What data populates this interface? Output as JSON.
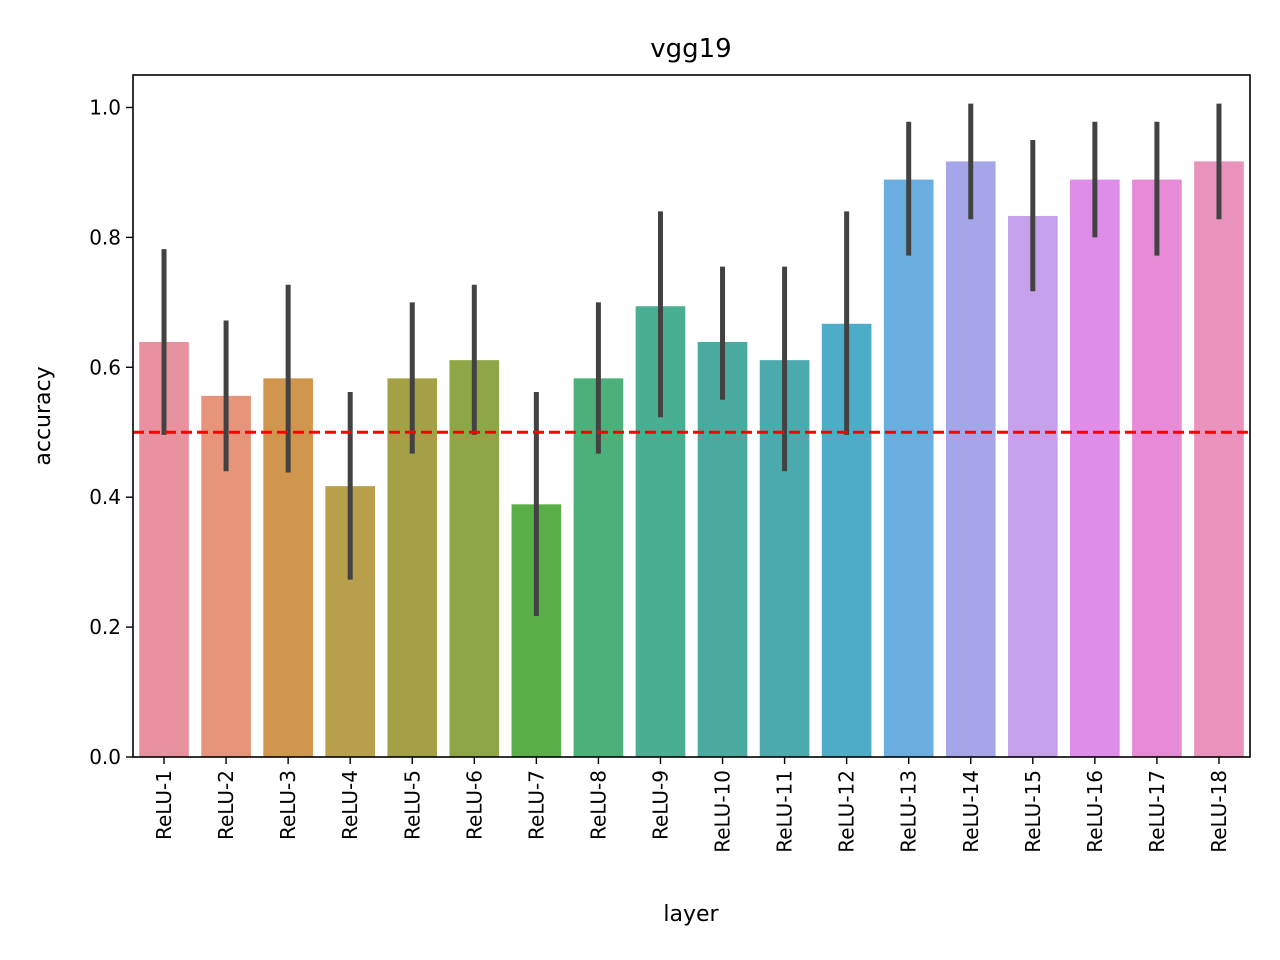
{
  "chart_data": {
    "type": "bar",
    "title": "vgg19",
    "xlabel": "layer",
    "ylabel": "accuracy",
    "ylim": [
      0,
      1.05
    ],
    "yticks": [
      0.0,
      0.2,
      0.4,
      0.6,
      0.8,
      1.0
    ],
    "ytick_labels": [
      "0.0",
      "0.2",
      "0.4",
      "0.6",
      "0.8",
      "1.0"
    ],
    "categories": [
      "ReLU-1",
      "ReLU-2",
      "ReLU-3",
      "ReLU-4",
      "ReLU-5",
      "ReLU-6",
      "ReLU-7",
      "ReLU-8",
      "ReLU-9",
      "ReLU-10",
      "ReLU-11",
      "ReLU-12",
      "ReLU-13",
      "ReLU-14",
      "ReLU-15",
      "ReLU-16",
      "ReLU-17",
      "ReLU-18"
    ],
    "values": [
      0.639,
      0.556,
      0.583,
      0.417,
      0.583,
      0.611,
      0.389,
      0.583,
      0.694,
      0.639,
      0.611,
      0.667,
      0.889,
      0.917,
      0.833,
      0.889,
      0.889,
      0.917
    ],
    "error_low": [
      0.496,
      0.44,
      0.438,
      0.273,
      0.467,
      0.496,
      0.217,
      0.467,
      0.523,
      0.55,
      0.44,
      0.496,
      0.772,
      0.828,
      0.717,
      0.8,
      0.772,
      0.828
    ],
    "error_high": [
      0.782,
      0.672,
      0.727,
      0.562,
      0.7,
      0.727,
      0.562,
      0.7,
      0.84,
      0.755,
      0.755,
      0.84,
      0.978,
      1.006,
      0.95,
      0.978,
      0.978,
      1.006
    ],
    "colors": [
      "#e8929f",
      "#e7957a",
      "#d0964e",
      "#b89f4b",
      "#a3a046",
      "#8ea646",
      "#5aae47",
      "#4bb07a",
      "#4aae93",
      "#4aaa9f",
      "#4baaad",
      "#4dadc8",
      "#6aaee0",
      "#a5a6ea",
      "#c5a0eb",
      "#de8de8",
      "#e88bd6",
      "#e992bb"
    ],
    "reference_line": {
      "y": 0.5,
      "color": "#ff0000",
      "style": "dashed"
    },
    "error_bar_color": "#424242",
    "grid": false,
    "legend": "none"
  }
}
